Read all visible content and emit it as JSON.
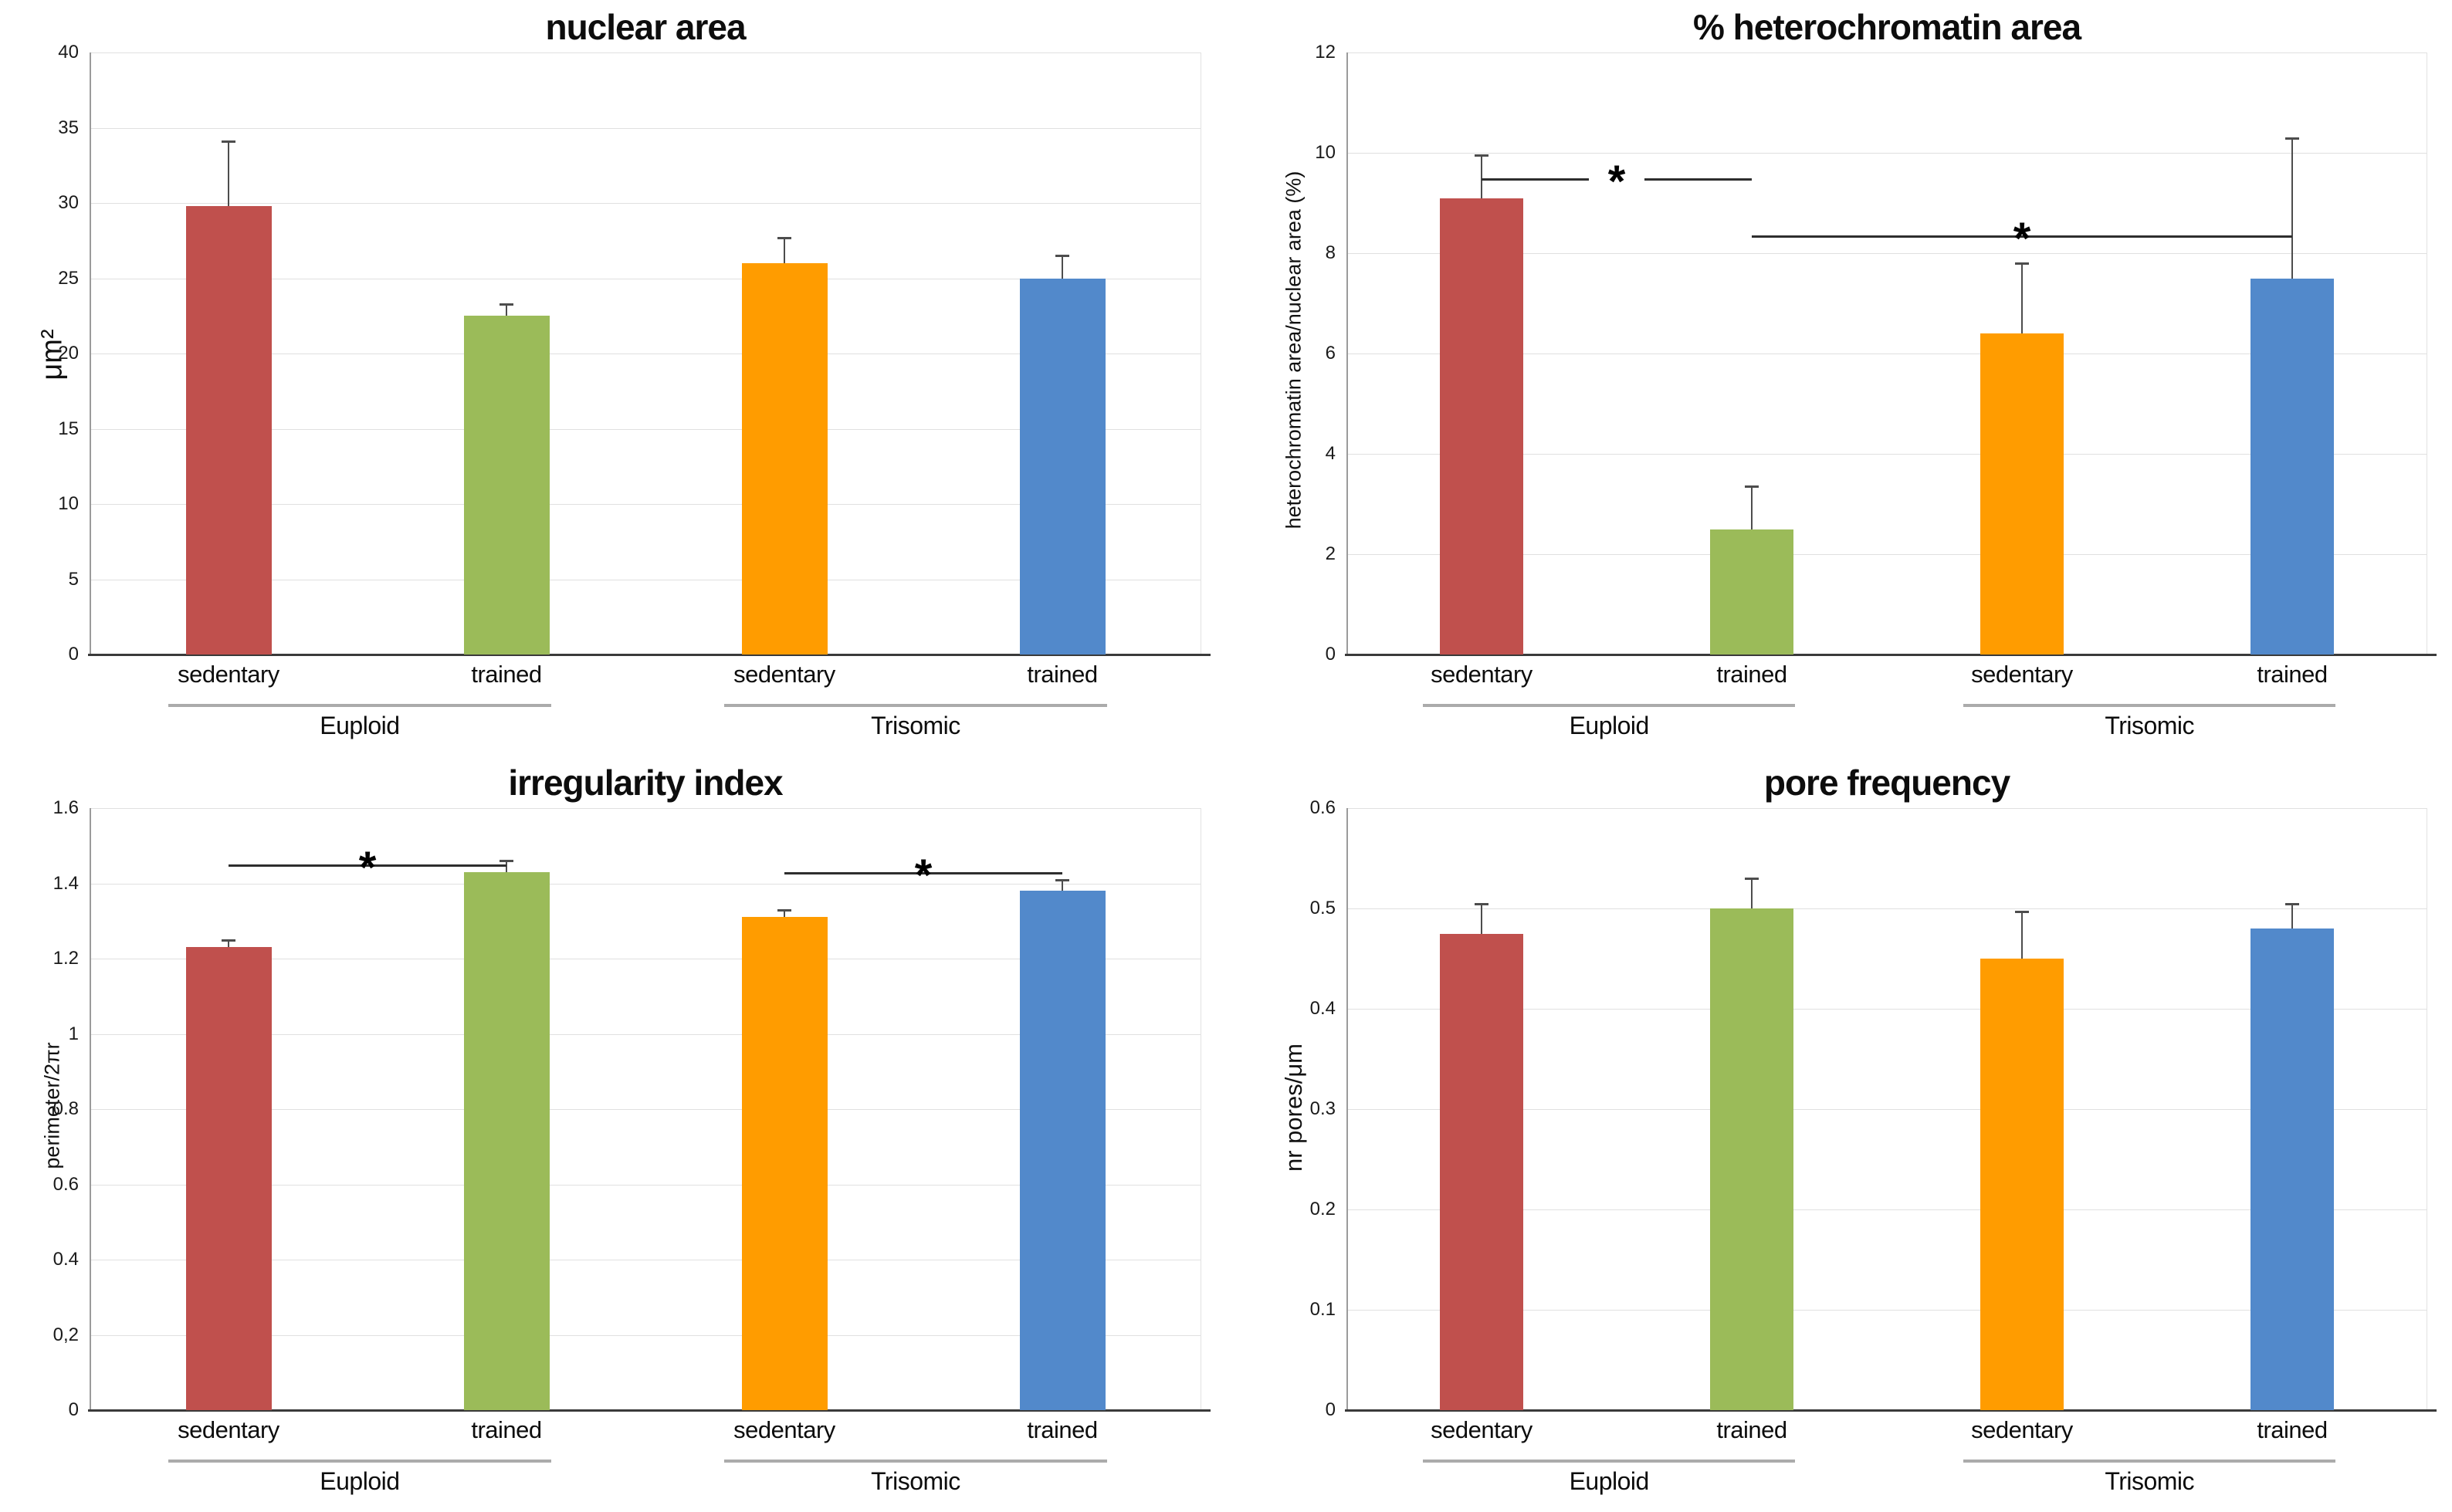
{
  "figure": {
    "background": "#ffffff",
    "bar_colors": [
      "#c0504d",
      "#9bbb59",
      "#ff9c00",
      "#5289cb"
    ],
    "error_bar_color": "#4d4d4d",
    "gridline_color": "#e0e0e0",
    "significance_marker": "*"
  },
  "chart_data": [
    {
      "type": "bar",
      "title": "nuclear area",
      "ylabel": "μm²",
      "ylim": [
        0,
        40
      ],
      "grid": true,
      "yticks": [
        {
          "v": 40,
          "label": "40"
        },
        {
          "v": 35,
          "label": "35"
        },
        {
          "v": 30,
          "label": "30"
        },
        {
          "v": 25,
          "label": "25"
        },
        {
          "v": 20,
          "label": "20"
        },
        {
          "v": 15,
          "label": "15"
        },
        {
          "v": 10,
          "label": "10"
        },
        {
          "v": 5,
          "label": "5"
        },
        {
          "v": 0,
          "label": "0"
        }
      ],
      "categories": [
        "sedentary",
        "trained",
        "sedentary",
        "trained"
      ],
      "groups": [
        "Euploid",
        "Trisomic"
      ],
      "values": [
        29.8,
        22.5,
        26.0,
        25.0
      ],
      "error_top": [
        34.1,
        23.3,
        27.7,
        26.5
      ],
      "sig_lines": []
    },
    {
      "type": "bar",
      "title": "% heterochromatin area",
      "ylabel": "heterochromatin area/nuclear area (%)",
      "ylim": [
        0,
        12
      ],
      "grid": true,
      "yticks": [
        {
          "v": 12,
          "label": "12"
        },
        {
          "v": 10,
          "label": "10"
        },
        {
          "v": 8,
          "label": "8"
        },
        {
          "v": 6,
          "label": "6"
        },
        {
          "v": 4,
          "label": "4"
        },
        {
          "v": 2,
          "label": "2"
        },
        {
          "v": 0,
          "label": "0"
        }
      ],
      "categories": [
        "sedentary",
        "trained",
        "sedentary",
        "trained"
      ],
      "groups": [
        "Euploid",
        "Trisomic"
      ],
      "values": [
        9.1,
        2.5,
        6.4,
        7.5
      ],
      "error_top": [
        9.95,
        3.35,
        7.8,
        10.3
      ],
      "sig_lines": [
        {
          "from": 0,
          "to": 1,
          "y": 9.5,
          "label": "*",
          "gap": true
        },
        {
          "from": 1,
          "to": 3,
          "y": 8.35,
          "label": "*",
          "gap": false
        }
      ]
    },
    {
      "type": "bar",
      "title": "irregularity index",
      "ylabel": "perimeter/2πr",
      "ylim": [
        0,
        1.6
      ],
      "grid": true,
      "yticks": [
        {
          "v": 1.6,
          "label": "1.6"
        },
        {
          "v": 1.4,
          "label": "1.4"
        },
        {
          "v": 1.2,
          "label": "1.2"
        },
        {
          "v": 1.0,
          "label": "1"
        },
        {
          "v": 0.8,
          "label": "0.8"
        },
        {
          "v": 0.6,
          "label": "0.6"
        },
        {
          "v": 0.4,
          "label": "0.4"
        },
        {
          "v": 0.2,
          "label": "0,2"
        },
        {
          "v": 0,
          "label": "0"
        }
      ],
      "categories": [
        "sedentary",
        "trained",
        "sedentary",
        "trained"
      ],
      "groups": [
        "Euploid",
        "Trisomic"
      ],
      "values": [
        1.23,
        1.43,
        1.31,
        1.38
      ],
      "error_top": [
        1.25,
        1.46,
        1.33,
        1.41
      ],
      "sig_lines": [
        {
          "from": 0,
          "to": 1,
          "y": 1.45,
          "label": "*",
          "gap": false
        },
        {
          "from": 2,
          "to": 3,
          "y": 1.43,
          "label": "*",
          "gap": false
        }
      ]
    },
    {
      "type": "bar",
      "title": "pore frequency",
      "ylabel": "nr pores/μm",
      "ylim": [
        0,
        0.6
      ],
      "grid": true,
      "yticks": [
        {
          "v": 0.6,
          "label": "0.6"
        },
        {
          "v": 0.5,
          "label": "0.5"
        },
        {
          "v": 0.4,
          "label": "0.4"
        },
        {
          "v": 0.3,
          "label": "0.3"
        },
        {
          "v": 0.2,
          "label": "0.2"
        },
        {
          "v": 0.1,
          "label": "0.1"
        },
        {
          "v": 0,
          "label": "0"
        }
      ],
      "categories": [
        "sedentary",
        "trained",
        "sedentary",
        "trained"
      ],
      "groups": [
        "Euploid",
        "Trisomic"
      ],
      "values": [
        0.475,
        0.5,
        0.45,
        0.48
      ],
      "error_top": [
        0.505,
        0.53,
        0.497,
        0.505
      ],
      "sig_lines": []
    }
  ]
}
